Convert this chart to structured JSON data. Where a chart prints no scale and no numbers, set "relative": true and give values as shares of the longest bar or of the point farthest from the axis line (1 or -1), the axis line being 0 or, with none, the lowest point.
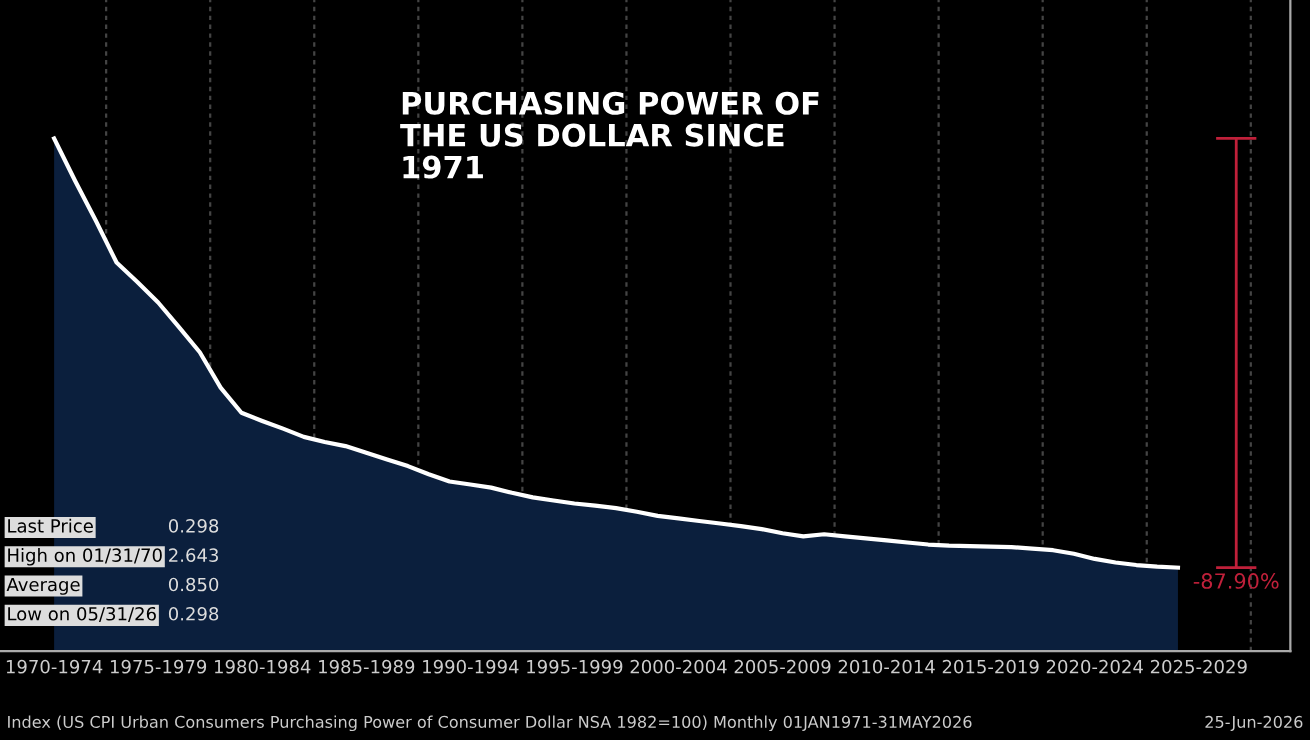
{
  "chart_data": {
    "type": "area",
    "title": "PURCHASING POWER OF\nTHE US DOLLAR SINCE\n1971",
    "relative": true,
    "categories": [
      "1970-1974",
      null,
      null,
      null,
      null,
      "1975-1979",
      null,
      null,
      null,
      null,
      "1980-1984",
      null,
      null,
      null,
      null,
      "1985-1989",
      null,
      null,
      null,
      null,
      "1990-1994",
      null,
      null,
      null,
      null,
      "1995-1999",
      null,
      null,
      null,
      null,
      "2000-2004",
      null,
      null,
      null,
      null,
      "2005-2009",
      null,
      null,
      null,
      null,
      "2010-2014",
      null,
      null,
      null,
      null,
      "2015-2019",
      null,
      null,
      null,
      null,
      "2020-2024",
      null,
      null,
      null,
      null,
      "2025-2029",
      null,
      null,
      null
    ],
    "series": [
      {
        "color": "#0b1f3d",
        "values": [
          1.0,
          0.918,
          0.84,
          0.758,
          0.72,
          0.68,
          0.632,
          0.583,
          0.514,
          0.465,
          0.449,
          0.434,
          0.418,
          0.408,
          0.4,
          0.387,
          0.374,
          0.361,
          0.345,
          0.331,
          0.325,
          0.319,
          0.309,
          0.3,
          0.294,
          0.288,
          0.284,
          0.279,
          0.272,
          0.264,
          0.259,
          0.254,
          0.249,
          0.244,
          0.238,
          0.23,
          0.224,
          0.228,
          0.224,
          0.22,
          0.216,
          0.212,
          0.208,
          0.206,
          0.205,
          0.204,
          0.203,
          0.2,
          0.197,
          0.19,
          0.18,
          0.173,
          0.168,
          0.165,
          0.163,
          null,
          null,
          null,
          null
        ]
      }
    ],
    "grid": "x",
    "annotations": [
      "Last Price",
      "0.298",
      "High on 01/31/70",
      "2.643",
      "Average",
      "0.850",
      "Low on 05/31/26",
      "0.298",
      "-87.90%",
      "Index (US CPI Urban Consumers Purchasing Power of Consumer Dollar NSA 1982=100) Monthly 01JAN1971-31MAY2026",
      "25-Jun-2026"
    ]
  }
}
